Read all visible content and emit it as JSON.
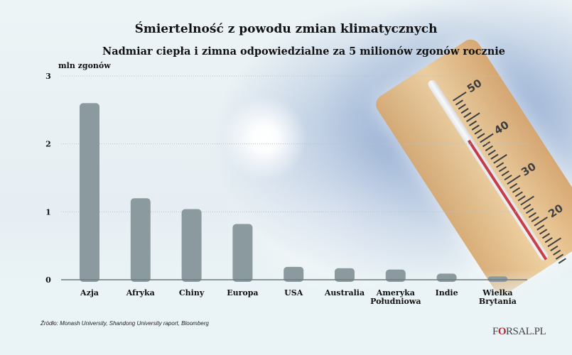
{
  "chart_data": {
    "type": "bar",
    "title": "Śmiertelność z powodu zmian klimatycznych",
    "subtitle": "Nadmiar ciepła i zimna odpowiedzialne za 5 milionów zgonów rocznie",
    "ylabel": "mln zgonów",
    "ylim": [
      0,
      3
    ],
    "yticks": [
      "0",
      "1",
      "2",
      "3"
    ],
    "grid": true,
    "categories": [
      "Azja",
      "Afryka",
      "Chiny",
      "Europa",
      "USA",
      "Australia",
      "Ameryka Południowa",
      "Indie",
      "Wielka Brytania"
    ],
    "category_lines": [
      [
        "Azja"
      ],
      [
        "Afryka"
      ],
      [
        "Chiny"
      ],
      [
        "Europa"
      ],
      [
        "USA"
      ],
      [
        "Australia"
      ],
      [
        "Ameryka",
        "Południowa"
      ],
      [
        "Indie"
      ],
      [
        "Wielka",
        "Brytania"
      ]
    ],
    "values": [
      2.6,
      1.2,
      1.04,
      0.82,
      0.19,
      0.17,
      0.15,
      0.09,
      0.05
    ],
    "bar_color": "#8a9a9e"
  },
  "source": "Źródło:  Monash University, Shandong University raport, Bloomberg",
  "logo": {
    "pre": "F",
    "mark": "O",
    "post": "RSAL.PL"
  },
  "thermometer_scale": [
    "50",
    "40",
    "30",
    "20"
  ]
}
